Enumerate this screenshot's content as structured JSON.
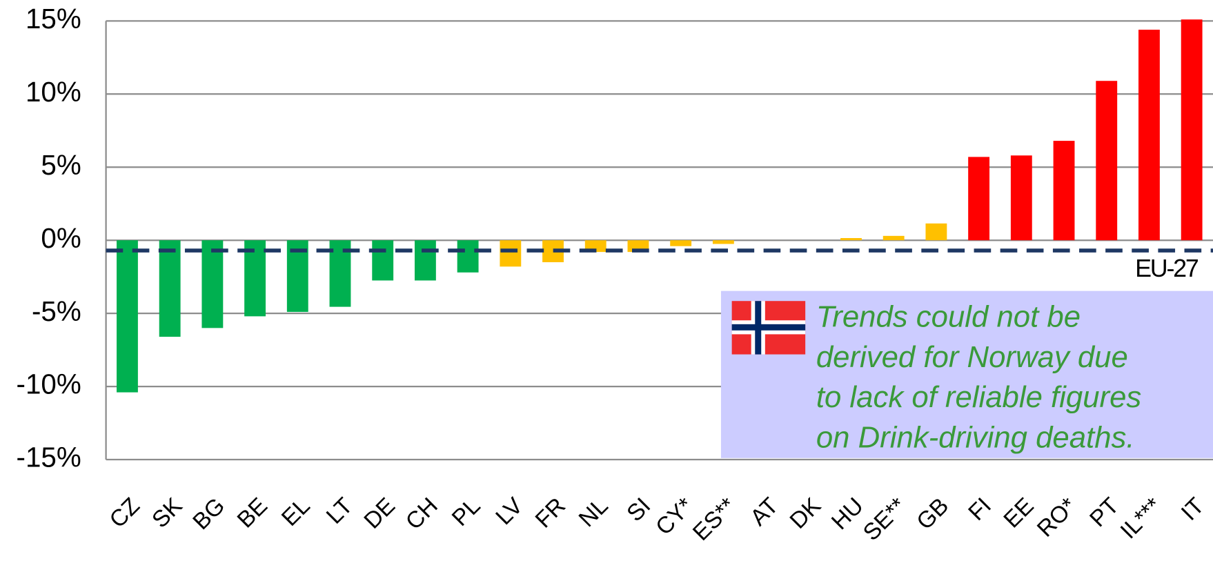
{
  "chart_data": {
    "type": "bar",
    "categories": [
      "CZ",
      "SK",
      "BG",
      "BE",
      "EL",
      "LT",
      "DE",
      "CH",
      "PL",
      "LV",
      "FR",
      "NL",
      "SI",
      "CY*",
      "ES**",
      "AT",
      "DK",
      "HU",
      "SE**",
      "GB",
      "FI",
      "EE",
      "RO*",
      "PT",
      "IL***",
      "IT"
    ],
    "values": [
      -10.4,
      -6.6,
      -6.0,
      -5.2,
      -4.9,
      -4.55,
      -2.75,
      -2.75,
      -2.2,
      -1.8,
      -1.5,
      -0.8,
      -0.8,
      -0.4,
      -0.25,
      0,
      0,
      0.15,
      0.3,
      1.15,
      5.7,
      5.8,
      6.8,
      10.9,
      14.4,
      15.1
    ],
    "colors": [
      "#00b050",
      "#00b050",
      "#00b050",
      "#00b050",
      "#00b050",
      "#00b050",
      "#00b050",
      "#00b050",
      "#00b050",
      "#ffc000",
      "#ffc000",
      "#ffc000",
      "#ffc000",
      "#ffc000",
      "#ffc000",
      "#ffc000",
      "#ffc000",
      "#ffc000",
      "#ffc000",
      "#ffc000",
      "#ff0000",
      "#ff0000",
      "#ff0000",
      "#ff0000",
      "#ff0000",
      "#ff0000"
    ],
    "ylim": [
      -15,
      15
    ],
    "yticks": [
      {
        "value": -15,
        "label": "-15%"
      },
      {
        "value": -10,
        "label": "-10%"
      },
      {
        "value": -5,
        "label": "-5%"
      },
      {
        "value": 0,
        "label": "0%"
      },
      {
        "value": 5,
        "label": "5%"
      },
      {
        "value": 10,
        "label": "10%"
      },
      {
        "value": 15,
        "label": "15%"
      }
    ],
    "grid": true,
    "reference_line": {
      "label": "EU-27",
      "value": -0.7,
      "color": "#1f3864"
    },
    "annotation": {
      "lines": [
        "Trends could not be",
        "derived for Norway due",
        "to lack of reliable figures",
        "on Drink-driving deaths."
      ]
    }
  }
}
